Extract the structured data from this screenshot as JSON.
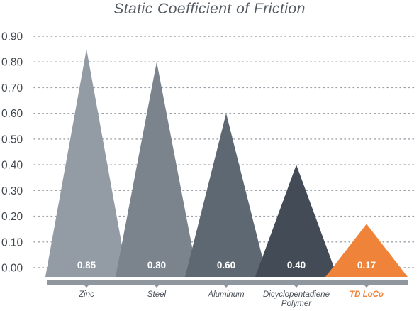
{
  "chart_data": {
    "type": "bar",
    "title": "Static Coefficient of Friction",
    "xlabel": "",
    "ylabel": "",
    "ylim": [
      0,
      0.9
    ],
    "yticks": [
      "0.00",
      "0.10",
      "0.20",
      "0.30",
      "0.40",
      "0.50",
      "0.60",
      "0.70",
      "0.80",
      "0.90"
    ],
    "grid": true,
    "categories": [
      {
        "lines": [
          "Zinc"
        ]
      },
      {
        "lines": [
          "Steel"
        ]
      },
      {
        "lines": [
          "Aluminum"
        ]
      },
      {
        "lines": [
          "Dicyclopentadiene",
          "Polymer"
        ]
      },
      {
        "lines": [
          "TD LoCo"
        ]
      }
    ],
    "values": [
      0.85,
      0.8,
      0.6,
      0.4,
      0.17
    ],
    "value_labels": [
      "0.85",
      "0.80",
      "0.60",
      "0.40",
      "0.17"
    ],
    "colors": [
      "#939ca5",
      "#7b848d",
      "#5e6872",
      "#434c56",
      "#f0833a"
    ],
    "highlight_label_color": "#f0833a",
    "label_color": "#4a5058",
    "axis_color": "#8f969e"
  }
}
